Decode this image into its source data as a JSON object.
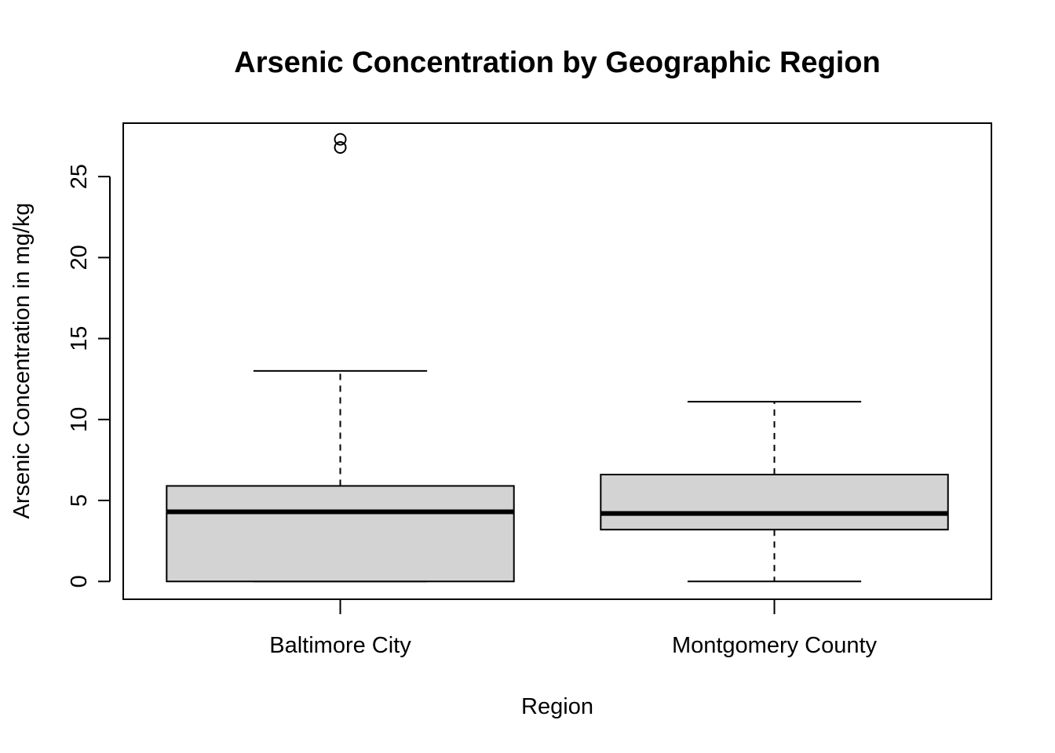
{
  "chart_data": {
    "type": "boxplot",
    "title": "Arsenic Concentration by Geographic Region",
    "xlabel": "Region",
    "ylabel": "Arsenic Concentration in mg/kg",
    "ylim": [
      -1.1,
      28.3
    ],
    "yticks": [
      "0",
      "5",
      "10",
      "15",
      "20",
      "25"
    ],
    "yticks_values": [
      0,
      5,
      10,
      15,
      20,
      25
    ],
    "categories": [
      "Baltimore City",
      "Montgomery County"
    ],
    "boxes": [
      {
        "category": "Baltimore City",
        "whisker_low": 0,
        "q1": 0,
        "median": 4.3,
        "q3": 5.9,
        "whisker_high": 13.0,
        "outliers": [
          27.3,
          26.8
        ]
      },
      {
        "category": "Montgomery County",
        "whisker_low": 0,
        "q1": 3.2,
        "median": 4.2,
        "q3": 6.6,
        "whisker_high": 11.1,
        "outliers": []
      }
    ],
    "box_fill": "#d3d3d3",
    "grid": false,
    "legend": "none"
  }
}
